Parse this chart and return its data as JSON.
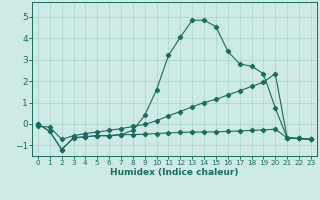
{
  "xlabel": "Humidex (Indice chaleur)",
  "xlim": [
    -0.5,
    23.5
  ],
  "ylim": [
    -1.5,
    5.7
  ],
  "xticks": [
    0,
    1,
    2,
    3,
    4,
    5,
    6,
    7,
    8,
    9,
    10,
    11,
    12,
    13,
    14,
    15,
    16,
    17,
    18,
    19,
    20,
    21,
    22,
    23
  ],
  "yticks": [
    -1,
    0,
    1,
    2,
    3,
    4,
    5
  ],
  "background_color": "#ceeae4",
  "grid_color": "#a8d4cc",
  "line_color": "#1a6b60",
  "line1_x": [
    0,
    1,
    2,
    3,
    4,
    5,
    6,
    7,
    8,
    9,
    10,
    11,
    12,
    13,
    14,
    15,
    16,
    17,
    18,
    19,
    20,
    21,
    22,
    23
  ],
  "line1_y": [
    0.0,
    -0.35,
    -1.2,
    -0.65,
    -0.6,
    -0.55,
    -0.55,
    -0.5,
    -0.5,
    -0.48,
    -0.45,
    -0.42,
    -0.4,
    -0.38,
    -0.38,
    -0.37,
    -0.35,
    -0.33,
    -0.3,
    -0.28,
    -0.25,
    -0.65,
    -0.68,
    -0.72
  ],
  "line2_x": [
    0,
    1,
    2,
    3,
    4,
    5,
    6,
    7,
    8,
    9,
    10,
    11,
    12,
    13,
    14,
    15,
    16,
    17,
    18,
    19,
    20,
    21,
    22,
    23
  ],
  "line2_y": [
    0.0,
    -0.35,
    -1.2,
    -0.65,
    -0.6,
    -0.55,
    -0.55,
    -0.5,
    -0.3,
    0.4,
    1.6,
    3.2,
    4.05,
    4.85,
    4.85,
    4.55,
    3.4,
    2.8,
    2.7,
    2.35,
    0.75,
    -0.65,
    -0.68,
    -0.72
  ],
  "line3_x": [
    0,
    1,
    2,
    3,
    4,
    5,
    6,
    7,
    8,
    9,
    10,
    11,
    12,
    13,
    14,
    15,
    16,
    17,
    18,
    19,
    20,
    21,
    22,
    23
  ],
  "line3_y": [
    -0.1,
    -0.15,
    -0.72,
    -0.55,
    -0.45,
    -0.38,
    -0.3,
    -0.22,
    -0.12,
    -0.02,
    0.15,
    0.38,
    0.58,
    0.8,
    1.0,
    1.15,
    1.35,
    1.55,
    1.75,
    1.95,
    2.35,
    -0.65,
    -0.68,
    -0.72
  ]
}
